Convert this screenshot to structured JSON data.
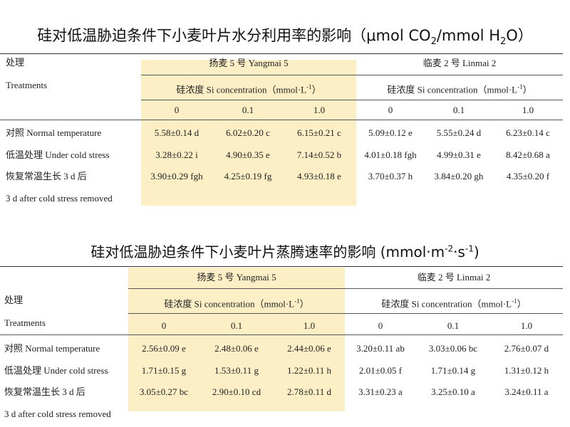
{
  "table1": {
    "title_prefix": "硅对低温胁迫条件下小麦叶片水分利用率的影响（μmol CO",
    "title_sub1": "2",
    "title_mid": "/mmol H",
    "title_sub2": "2",
    "title_suffix": "O）",
    "row_label_cn": "处理",
    "row_label_en": "Treatments",
    "cultivar1": "扬麦 5 号 Yangmai 5",
    "cultivar2": "临麦 2 号 Linmai 2",
    "si_header": "硅浓度  Si concentration（mmol·L",
    "si_sup": "-1",
    "si_close": "）",
    "conc": [
      "0",
      "0.1",
      "1.0",
      "0",
      "0.1",
      "1.0"
    ],
    "rows": [
      {
        "label": "对照 Normal temperature",
        "values": [
          "5.58±0.14 d",
          "6.02±0.20 c",
          "6.15±0.21 c",
          "5.09±0.12 e",
          "5.55±0.24 d",
          "6.23±0.14 c"
        ]
      },
      {
        "label": "低温处理 Under cold stress",
        "values": [
          "3.28±0.22 i",
          "4.90±0.35 e",
          "7.14±0.52 b",
          "4.01±0.18 fgh",
          "4.99±0.31 e",
          "8.42±0.68 a"
        ]
      },
      {
        "label": "恢复常温生长 3 d 后",
        "values": [
          "3.90±0.29 fgh",
          "4.25±0.19 fg",
          "4.93±0.18 e",
          "3.70±0.37 h",
          "3.84±0.20 gh",
          "4.35±0.20 f"
        ]
      }
    ],
    "extra_label": "3 d after cold stress removed"
  },
  "table2": {
    "title_prefix": "硅对低温胁迫条件下小麦叶片蒸腾速率的影响 (mmol·m",
    "title_sup1": "-2",
    "title_mid": "·s",
    "title_sup2": "-1",
    "title_suffix": ")",
    "row_label_cn": "处理",
    "row_label_en": "Treatments",
    "cultivar1": "扬麦 5 号 Yangmai 5",
    "cultivar2": "临麦 2 号 Linmai 2",
    "si_header": "硅浓度  Si concentration（mmol·L",
    "si_sup": "-1",
    "si_close": "）",
    "conc": [
      "0",
      "0.1",
      "1.0",
      "0",
      "0.1",
      "1.0"
    ],
    "rows": [
      {
        "label": "对照  Normal temperature",
        "values": [
          "2.56±0.09 e",
          "2.48±0.06 e",
          "2.44±0.06 e",
          "3.20±0.11 ab",
          "3.03±0.06 bc",
          "2.76±0.07 d"
        ]
      },
      {
        "label": "低温处理  Under cold stress",
        "values": [
          "1.71±0.15 g",
          "1.53±0.11 g",
          "1.22±0.11 h",
          "2.01±0.05 f",
          "1.71±0.14 g",
          "1.31±0.12 h"
        ]
      },
      {
        "label": "恢复常温生长 3 d 后",
        "values": [
          "3.05±0.27 bc",
          "2.90±0.10 cd",
          "2.78±0.11 d",
          "3.31±0.23 a",
          "3.25±0.10 a",
          "3.24±0.11 a"
        ]
      }
    ],
    "extra_label": "3 d after cold stress removed"
  },
  "colors": {
    "highlight": "#fcefc6",
    "rule": "#555555",
    "text": "#222222"
  }
}
